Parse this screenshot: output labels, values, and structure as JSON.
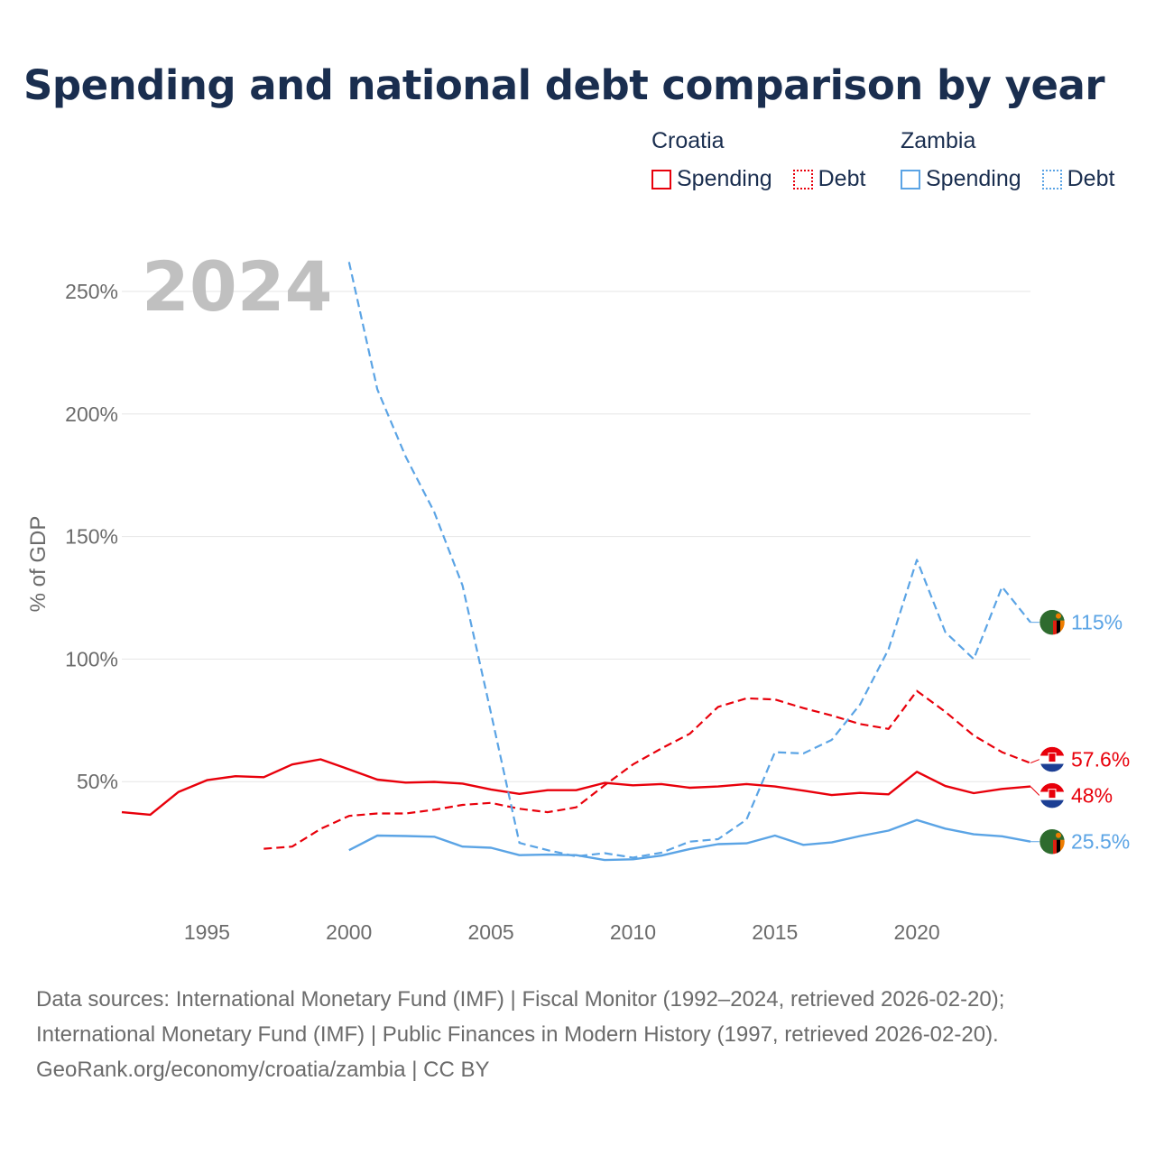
{
  "title": "Spending and national debt comparison by year",
  "legend": [
    {
      "country": "Croatia",
      "color": "#e8000b",
      "items": [
        {
          "label": "Spending",
          "style": "solid"
        },
        {
          "label": "Debt",
          "style": "dotted"
        }
      ]
    },
    {
      "country": "Zambia",
      "color": "#5ba4e5",
      "items": [
        {
          "label": "Spending",
          "style": "solid"
        },
        {
          "label": "Debt",
          "style": "dotted"
        }
      ]
    }
  ],
  "footer": {
    "line1": "Data sources: International Monetary Fund (IMF) | Fiscal Monitor (1992–2024, retrieved 2026-02-20);",
    "line2": "International Monetary Fund (IMF) | Public Finances in Modern History (1997, retrieved 2026-02-20).",
    "line3": "GeoRank.org/economy/croatia/zambia | CC BY"
  },
  "chart_data": {
    "type": "line",
    "watermark_year": "2024",
    "ylabel": "% of GDP",
    "xlabel": "",
    "xlim": [
      1992,
      2024
    ],
    "ylim": [
      0,
      250
    ],
    "x_ticks": [
      1995,
      2000,
      2005,
      2010,
      2015,
      2020
    ],
    "y_ticks": [
      50,
      100,
      150,
      200,
      250
    ],
    "y_tick_labels": [
      "50%",
      "100%",
      "150%",
      "200%",
      "250%"
    ],
    "series": [
      {
        "name": "Croatia Spending",
        "country": "Croatia",
        "color": "#e8000b",
        "dash": "solid",
        "end_label": "48%",
        "end_label_offset": 10,
        "points": [
          [
            1992,
            37.5
          ],
          [
            1993,
            36.5
          ],
          [
            1994,
            45.8
          ],
          [
            1995,
            50.6
          ],
          [
            1996,
            52.2
          ],
          [
            1997,
            51.8
          ],
          [
            1998,
            57
          ],
          [
            1999,
            59.1
          ],
          [
            2000,
            55
          ],
          [
            2001,
            50.8
          ],
          [
            2002,
            49.6
          ],
          [
            2003,
            49.9
          ],
          [
            2004,
            49.2
          ],
          [
            2005,
            46.8
          ],
          [
            2006,
            45
          ],
          [
            2007,
            46.5
          ],
          [
            2008,
            46.5
          ],
          [
            2009,
            49.5
          ],
          [
            2010,
            48.5
          ],
          [
            2011,
            49
          ],
          [
            2012,
            47.5
          ],
          [
            2013,
            48
          ],
          [
            2014,
            49
          ],
          [
            2015,
            48
          ],
          [
            2016,
            46.3
          ],
          [
            2017,
            44.5
          ],
          [
            2018,
            45.4
          ],
          [
            2019,
            44.8
          ],
          [
            2020,
            54
          ],
          [
            2021,
            48.2
          ],
          [
            2022,
            45.3
          ],
          [
            2023,
            47
          ],
          [
            2024,
            48
          ]
        ]
      },
      {
        "name": "Croatia Debt",
        "country": "Croatia",
        "color": "#e8000b",
        "dash": "dashed",
        "end_label": "57.6%",
        "end_label_offset": -4,
        "points": [
          [
            1997,
            22.6
          ],
          [
            1998,
            23.5
          ],
          [
            1999,
            30.7
          ],
          [
            2000,
            36
          ],
          [
            2001,
            37
          ],
          [
            2002,
            37
          ],
          [
            2003,
            38.5
          ],
          [
            2004,
            40.5
          ],
          [
            2005,
            41.3
          ],
          [
            2006,
            38.9
          ],
          [
            2007,
            37.5
          ],
          [
            2008,
            39.5
          ],
          [
            2009,
            48.5
          ],
          [
            2010,
            57
          ],
          [
            2011,
            63.5
          ],
          [
            2012,
            69.5
          ],
          [
            2013,
            80.5
          ],
          [
            2014,
            84
          ],
          [
            2015,
            83.5
          ],
          [
            2016,
            80
          ],
          [
            2017,
            77
          ],
          [
            2018,
            73.5
          ],
          [
            2019,
            71.5
          ],
          [
            2020,
            87
          ],
          [
            2021,
            78.5
          ],
          [
            2022,
            68.8
          ],
          [
            2023,
            62
          ],
          [
            2024,
            57.6
          ]
        ]
      },
      {
        "name": "Zambia Spending",
        "country": "Zambia",
        "color": "#5ba4e5",
        "dash": "solid",
        "end_label": "25.5%",
        "end_label_offset": 0,
        "points": [
          [
            2000,
            22
          ],
          [
            2001,
            28
          ],
          [
            2002,
            27.8
          ],
          [
            2003,
            27.5
          ],
          [
            2004,
            23.5
          ],
          [
            2005,
            23
          ],
          [
            2006,
            20
          ],
          [
            2007,
            20.2
          ],
          [
            2008,
            20
          ],
          [
            2009,
            18
          ],
          [
            2010,
            18.3
          ],
          [
            2011,
            19.8
          ],
          [
            2012,
            22.5
          ],
          [
            2013,
            24.5
          ],
          [
            2014,
            24.8
          ],
          [
            2015,
            28
          ],
          [
            2016,
            24.2
          ],
          [
            2017,
            25.2
          ],
          [
            2018,
            27.8
          ],
          [
            2019,
            30
          ],
          [
            2020,
            34.3
          ],
          [
            2021,
            30.8
          ],
          [
            2022,
            28.5
          ],
          [
            2023,
            27.7
          ],
          [
            2024,
            25.5
          ]
        ]
      },
      {
        "name": "Zambia Debt",
        "country": "Zambia",
        "color": "#5ba4e5",
        "dash": "dashed",
        "end_label": "115%",
        "end_label_offset": 0,
        "points": [
          [
            2000,
            262
          ],
          [
            2001,
            210
          ],
          [
            2002,
            182.5
          ],
          [
            2003,
            160
          ],
          [
            2004,
            130
          ],
          [
            2005,
            78
          ],
          [
            2006,
            25
          ],
          [
            2007,
            22
          ],
          [
            2008,
            19.5
          ],
          [
            2009,
            20.8
          ],
          [
            2010,
            19
          ],
          [
            2011,
            21
          ],
          [
            2012,
            25.5
          ],
          [
            2013,
            26.5
          ],
          [
            2014,
            34.5
          ],
          [
            2015,
            62
          ],
          [
            2016,
            61.5
          ],
          [
            2017,
            67
          ],
          [
            2018,
            81.5
          ],
          [
            2019,
            104
          ],
          [
            2020,
            140.5
          ],
          [
            2021,
            111
          ],
          [
            2022,
            100
          ],
          [
            2023,
            129.5
          ],
          [
            2024,
            115
          ]
        ]
      }
    ]
  }
}
